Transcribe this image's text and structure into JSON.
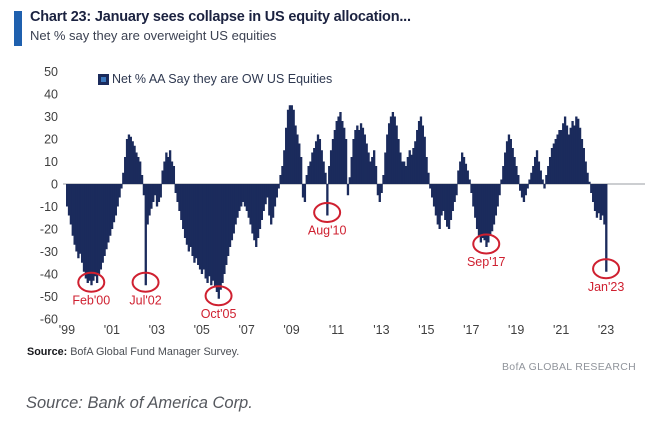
{
  "header": {
    "title": "Chart 23: January sees collapse in US equity allocation...",
    "subtitle": "Net % say they are overweight US equities"
  },
  "legend": {
    "label": "Net % AA Say they are OW US Equities"
  },
  "footer": {
    "source_label": "Source:",
    "source_text": " BofA Global Fund Manager Survey.",
    "brand": "BofA GLOBAL RESEARCH"
  },
  "caption": "Source: Bank of America Corp.",
  "colors": {
    "bar": "#1b2b5c",
    "accent_blue": "#1f60ae",
    "annotation_red": "#cf2030",
    "axis_line": "#999da3",
    "tick_text": "#3f3f3f"
  },
  "chart_data": {
    "type": "bar",
    "title": "Net % AA Say they are OW US Equities",
    "frequency": "monthly",
    "x_start": "1999-01",
    "x_end": "2023-01",
    "ylim": [
      -60,
      50
    ],
    "grid": false,
    "legend_position": "top-left",
    "yticks": [
      50,
      40,
      30,
      20,
      10,
      0,
      -10,
      -20,
      -30,
      -40,
      -50,
      -60
    ],
    "xticks": [
      "'99",
      "'01",
      "'03",
      "'05",
      "'07",
      "'09",
      "'11",
      "'13",
      "'15",
      "'17",
      "'19",
      "'21",
      "'23"
    ],
    "xtick_years": [
      1999,
      2001,
      2003,
      2005,
      2007,
      2009,
      2011,
      2013,
      2015,
      2017,
      2019,
      2021,
      2023
    ],
    "values": [
      -10,
      -14,
      -18,
      -23,
      -27,
      -30,
      -33,
      -31,
      -35,
      -39,
      -42,
      -44,
      -43,
      -45,
      -43,
      -41,
      -44,
      -40,
      -38,
      -35,
      -32,
      -29,
      -26,
      -23,
      -20,
      -17,
      -14,
      -10,
      -6,
      -2,
      5,
      12,
      20,
      22,
      21,
      19,
      17,
      14,
      12,
      10,
      4,
      -5,
      -45,
      -18,
      -14,
      -11,
      -8,
      -5,
      -10,
      -8,
      -6,
      6,
      10,
      14,
      12,
      15,
      10,
      8,
      -4,
      -8,
      -12,
      -16,
      -20,
      -24,
      -27,
      -30,
      -28,
      -32,
      -35,
      -33,
      -36,
      -38,
      -40,
      -38,
      -42,
      -44,
      -41,
      -45,
      -43,
      -46,
      -48,
      -51,
      -47,
      -44,
      -40,
      -36,
      -32,
      -28,
      -25,
      -22,
      -18,
      -15,
      -12,
      -10,
      -8,
      -10,
      -12,
      -15,
      -18,
      -22,
      -25,
      -28,
      -24,
      -20,
      -16,
      -12,
      -9,
      -6,
      -14,
      -18,
      -15,
      -10,
      -6,
      -2,
      4,
      8,
      15,
      25,
      33,
      35,
      35,
      33,
      26,
      22,
      18,
      12,
      -6,
      -8,
      4,
      8,
      10,
      14,
      16,
      19,
      22,
      20,
      15,
      10,
      5,
      -14,
      8,
      15,
      20,
      24,
      28,
      30,
      32,
      28,
      25,
      20,
      -5,
      3,
      12,
      20,
      24,
      26,
      24,
      27,
      25,
      22,
      18,
      14,
      10,
      12,
      15,
      8,
      -5,
      -8,
      -4,
      4,
      14,
      22,
      27,
      30,
      32,
      30,
      26,
      20,
      14,
      10,
      10,
      8,
      12,
      15,
      13,
      16,
      19,
      24,
      28,
      30,
      26,
      21,
      12,
      5,
      -2,
      -6,
      -10,
      -14,
      -18,
      -20,
      -14,
      -12,
      -16,
      -19,
      -20,
      -16,
      -12,
      -8,
      -5,
      6,
      10,
      14,
      12,
      9,
      6,
      2,
      -4,
      -10,
      -15,
      -20,
      -23,
      -26,
      -24,
      -25,
      -28,
      -26,
      -23,
      -21,
      -18,
      -14,
      -10,
      -5,
      2,
      8,
      14,
      19,
      22,
      20,
      16,
      12,
      8,
      4,
      -3,
      -6,
      -8,
      -5,
      -2,
      2,
      5,
      8,
      12,
      15,
      10,
      6,
      2,
      -2,
      4,
      8,
      12,
      16,
      18,
      20,
      22,
      24,
      24,
      27,
      30,
      26,
      22,
      25,
      28,
      26,
      30,
      29,
      25,
      20,
      16,
      10,
      5,
      1,
      -4,
      -8,
      -12,
      -15,
      -13,
      -16,
      -14,
      -18,
      -39
    ],
    "annotations": [
      {
        "label": "Feb'00",
        "month": "2000-02",
        "index": 13,
        "value": -45
      },
      {
        "label": "Jul'02",
        "month": "2002-07",
        "index": 42,
        "value": -45
      },
      {
        "label": "Oct'05",
        "month": "2005-10",
        "index": 81,
        "value": -51
      },
      {
        "label": "Aug'10",
        "month": "2010-08",
        "index": 139,
        "value": -14
      },
      {
        "label": "Sep'17",
        "month": "2017-09",
        "index": 224,
        "value": -28
      },
      {
        "label": "Jan'23",
        "month": "2023-01",
        "index": 288,
        "value": -39
      }
    ]
  }
}
